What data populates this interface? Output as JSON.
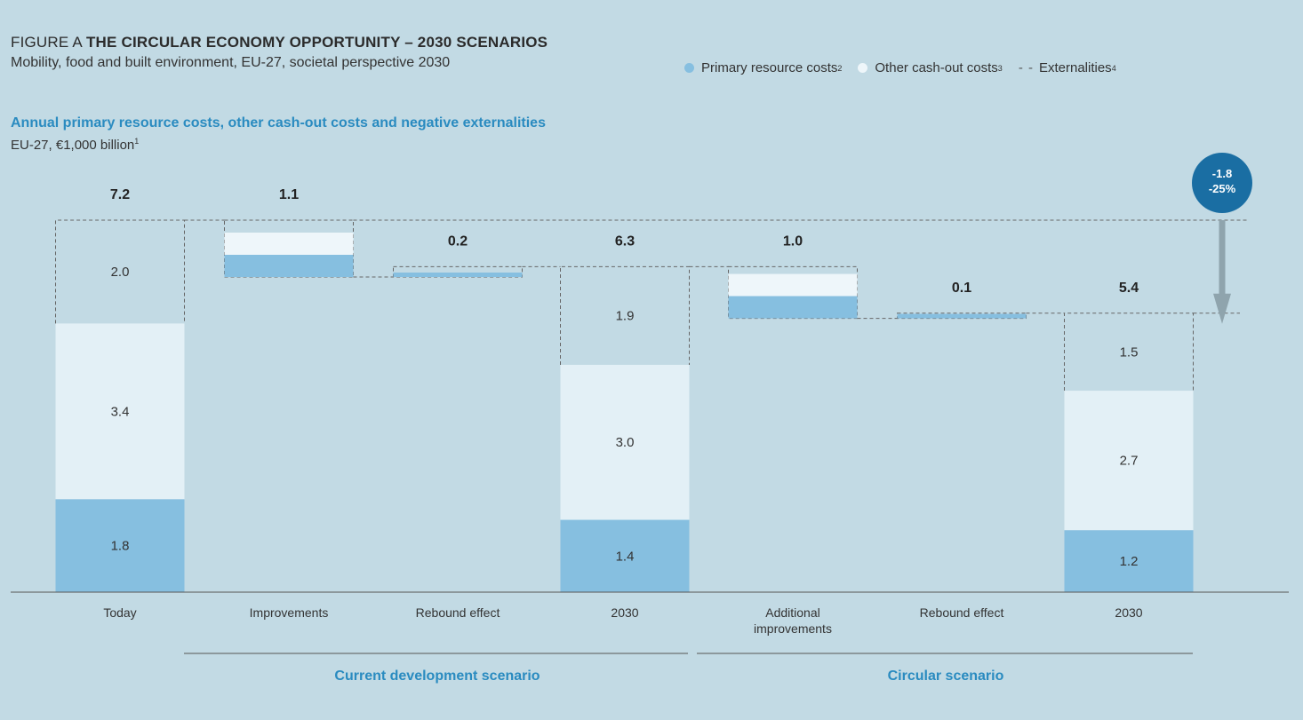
{
  "figure": {
    "prefix": "FIGURE A",
    "title": "THE CIRCULAR ECONOMY OPPORTUNITY – 2030 SCENARIOS",
    "subtitle": "Mobility, food and built environment, EU-27, societal perspective 2030"
  },
  "legend": {
    "primary": "Primary resource costs",
    "primary_sup": "2",
    "other": "Other cash-out costs",
    "other_sup": "3",
    "externalities": "Externalities",
    "externalities_sup": "4",
    "dash_glyph": "- -"
  },
  "axis": {
    "title": "Annual primary resource costs, other cash-out costs and negative externalities",
    "unit": "EU-27, €1,000 billion",
    "unit_sup": "1"
  },
  "colors": {
    "background": "#c2dae4",
    "primary": "#86bfe0",
    "other": "#e3f0f6",
    "accent": "#1a6ea3",
    "arrow": "#8fa4ad",
    "title_blue": "#2a8bc0"
  },
  "chart_data": {
    "type": "bar",
    "subtype": "stacked-waterfall",
    "categories": [
      "Today",
      "Improvements",
      "Rebound effect",
      "2030",
      "Additional improvements",
      "Rebound effect",
      "2030"
    ],
    "totals": [
      "7.2",
      "1.1",
      "0.2",
      "6.3",
      "1.0",
      "0.1",
      "5.4"
    ],
    "stacks": [
      {
        "category": "Today",
        "kind": "total",
        "primary": 1.8,
        "other": 3.4,
        "externalities": 2.0,
        "labels": {
          "primary": "1.8",
          "other": "3.4",
          "externalities": "2.0"
        }
      },
      {
        "category": "Improvements",
        "kind": "decrease",
        "value": 1.1
      },
      {
        "category": "Rebound effect",
        "kind": "increase",
        "value": 0.2
      },
      {
        "category": "2030",
        "kind": "total",
        "primary": 1.4,
        "other": 3.0,
        "externalities": 1.9,
        "labels": {
          "primary": "1.4",
          "other": "3.0",
          "externalities": "1.9"
        }
      },
      {
        "category": "Additional improvements",
        "kind": "decrease",
        "value": 1.0
      },
      {
        "category": "Rebound effect",
        "kind": "increase",
        "value": 0.1
      },
      {
        "category": "2030",
        "kind": "total",
        "primary": 1.2,
        "other": 2.7,
        "externalities": 1.5,
        "labels": {
          "primary": "1.2",
          "other": "2.7",
          "externalities": "1.5"
        }
      }
    ],
    "groups": [
      {
        "label": "Current development scenario"
      },
      {
        "label": "Circular scenario"
      }
    ],
    "callout": {
      "line1": "-1.8",
      "line2": "-25%"
    },
    "ylim": [
      0,
      7.6
    ]
  }
}
